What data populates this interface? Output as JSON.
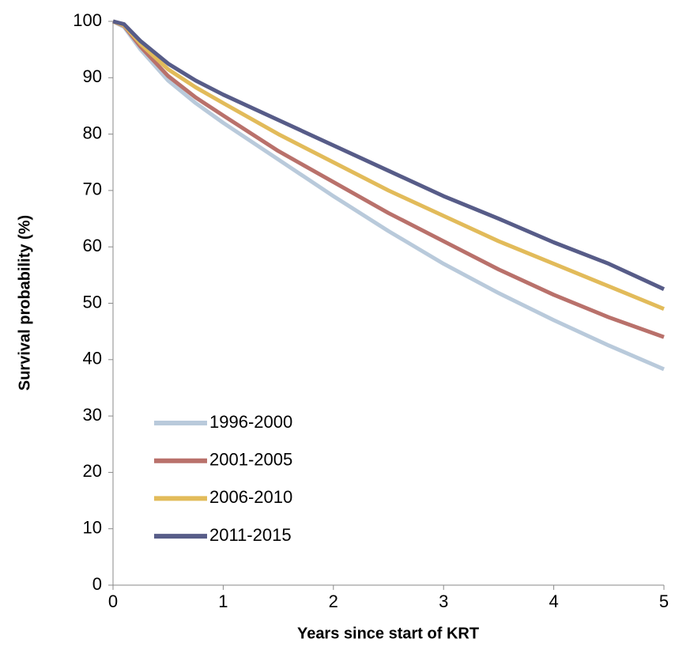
{
  "chart_data": {
    "type": "line",
    "x_label": "Years since start of KRT",
    "y_label": "Survival probability (%)",
    "x": [
      0,
      0.1,
      0.25,
      0.5,
      0.75,
      1,
      1.5,
      2,
      2.5,
      3,
      3.5,
      4,
      4.5,
      5
    ],
    "series": [
      {
        "name": "1996-2000",
        "color": "#b9cadb",
        "values": [
          100,
          99,
          95,
          89.5,
          85.5,
          82,
          75.5,
          69,
          62.8,
          57,
          51.8,
          47,
          42.5,
          38.3
        ]
      },
      {
        "name": "2001-2005",
        "color": "#b9716b",
        "values": [
          100,
          99.2,
          95.5,
          90.3,
          86.5,
          83.3,
          77,
          71.5,
          66,
          61,
          56,
          51.5,
          47.5,
          44
        ]
      },
      {
        "name": "2006-2010",
        "color": "#e2bb5a",
        "values": [
          100,
          99.3,
          96,
          91.5,
          88.3,
          85.5,
          80,
          75,
          70,
          65.5,
          61,
          57,
          53,
          49
        ]
      },
      {
        "name": "2011-2015",
        "color": "#575c88",
        "values": [
          100,
          99.5,
          96.5,
          92.5,
          89.5,
          87,
          82.5,
          78,
          73.5,
          69,
          65,
          60.8,
          57,
          52.5
        ]
      }
    ],
    "xlim": [
      0,
      5
    ],
    "xticks": [
      0,
      1,
      2,
      3,
      4,
      5
    ],
    "ylim": [
      0,
      100
    ],
    "yticks": [
      0,
      10,
      20,
      30,
      40,
      50,
      60,
      70,
      80,
      90,
      100
    ],
    "grid": false
  }
}
